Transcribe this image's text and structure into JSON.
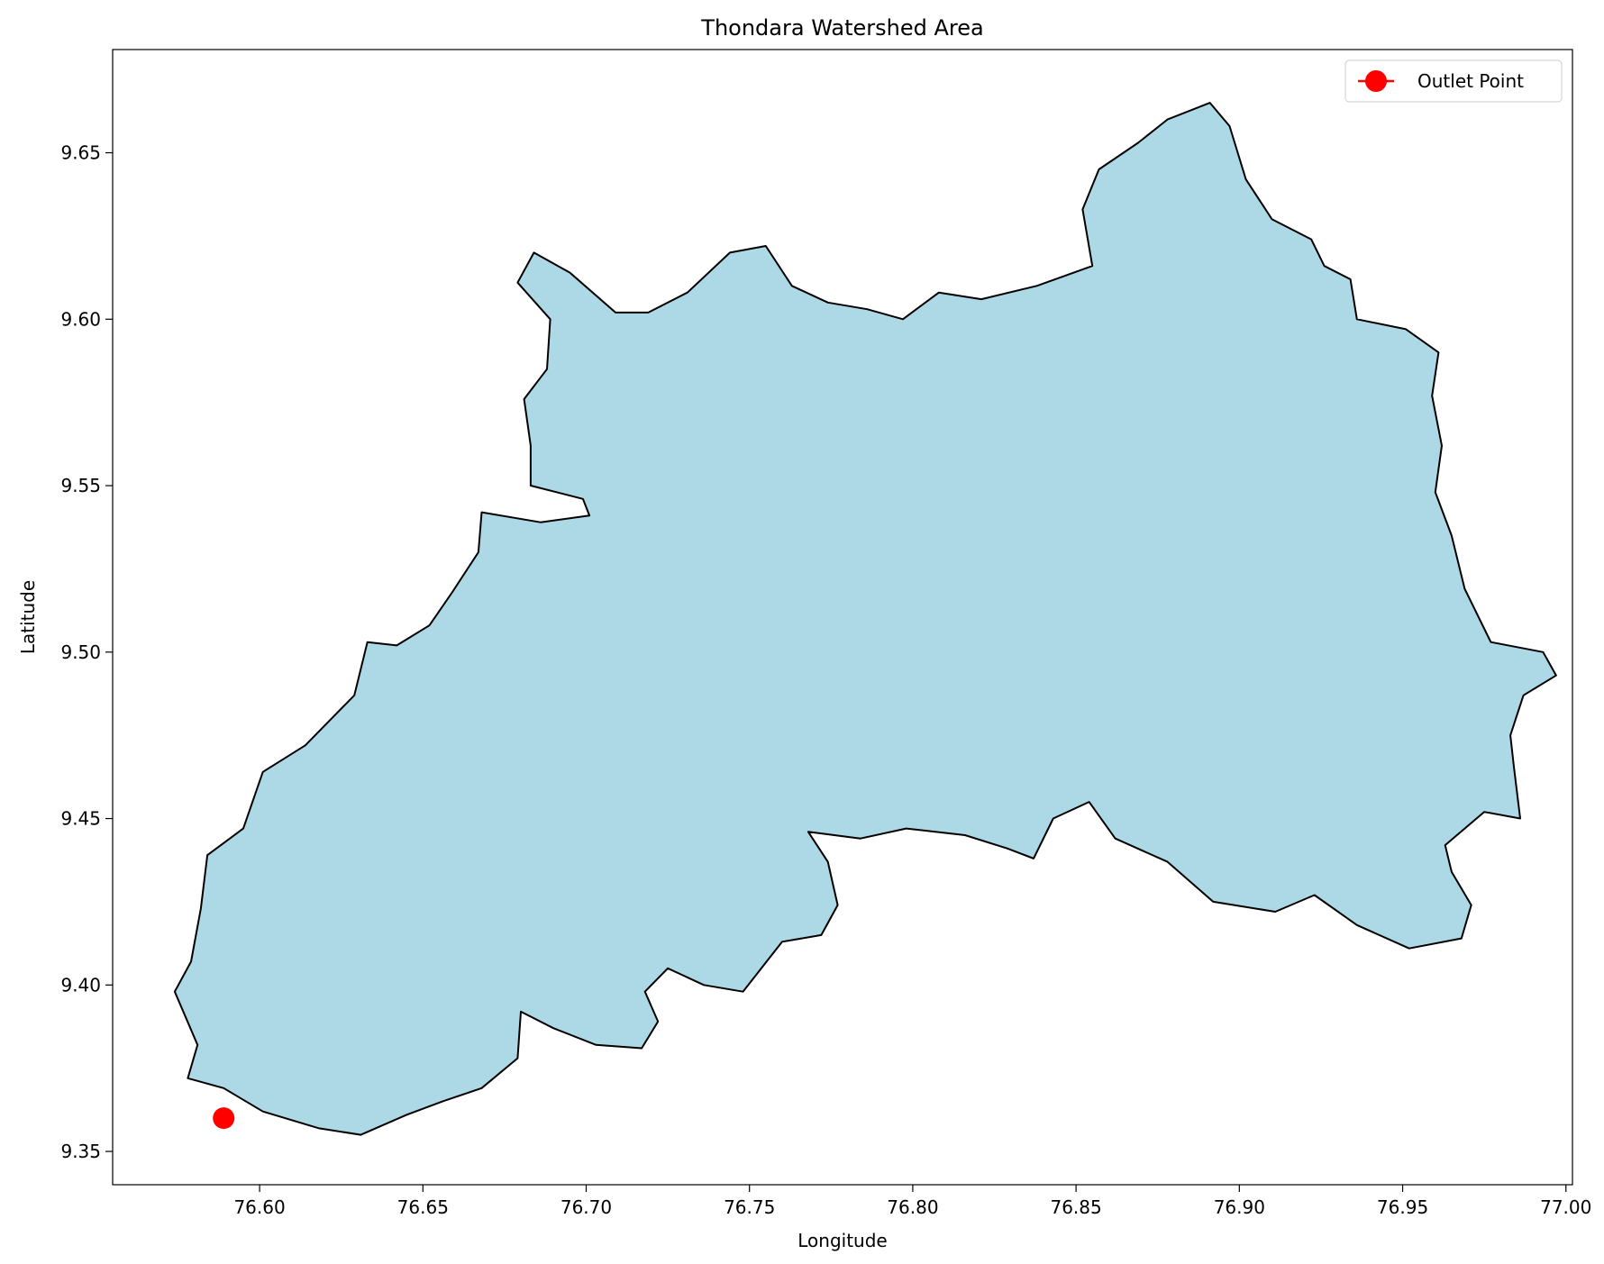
{
  "chart_data": {
    "type": "map",
    "title": "Thondara Watershed Area",
    "xlabel": "Longitude",
    "ylabel": "Latitude",
    "xlim": [
      76.555,
      77.002
    ],
    "ylim": [
      9.34,
      9.681
    ],
    "x_ticks": [
      76.6,
      76.65,
      76.7,
      76.75,
      76.8,
      76.85,
      76.9,
      76.95,
      77.0
    ],
    "x_tick_labels": [
      "76.60",
      "76.65",
      "76.70",
      "76.75",
      "76.80",
      "76.85",
      "76.90",
      "76.95",
      "77.00"
    ],
    "y_ticks": [
      9.35,
      9.4,
      9.45,
      9.5,
      9.55,
      9.6,
      9.65
    ],
    "y_tick_labels": [
      "9.35",
      "9.40",
      "9.45",
      "9.50",
      "9.55",
      "9.60",
      "9.65"
    ],
    "watershed_color": "#add8e6",
    "watershed_edge_color": "#000000",
    "outlet_color": "#ff0000",
    "legend": {
      "position": "top-right",
      "entries": [
        {
          "label": "Outlet Point",
          "color": "#ff0000",
          "marker": "circle"
        }
      ]
    },
    "outlet_point": {
      "lon": 76.589,
      "lat": 9.36
    },
    "watershed_boundary": [
      [
        76.589,
        9.369
      ],
      [
        76.601,
        9.362
      ],
      [
        76.618,
        9.357
      ],
      [
        76.631,
        9.355
      ],
      [
        76.645,
        9.361
      ],
      [
        76.656,
        9.365
      ],
      [
        76.668,
        9.369
      ],
      [
        76.679,
        9.378
      ],
      [
        76.68,
        9.392
      ],
      [
        76.69,
        9.387
      ],
      [
        76.703,
        9.382
      ],
      [
        76.717,
        9.381
      ],
      [
        76.722,
        9.389
      ],
      [
        76.718,
        9.398
      ],
      [
        76.725,
        9.405
      ],
      [
        76.736,
        9.4
      ],
      [
        76.748,
        9.398
      ],
      [
        76.76,
        9.413
      ],
      [
        76.772,
        9.415
      ],
      [
        76.777,
        9.424
      ],
      [
        76.774,
        9.437
      ],
      [
        76.768,
        9.446
      ],
      [
        76.784,
        9.444
      ],
      [
        76.798,
        9.447
      ],
      [
        76.816,
        9.445
      ],
      [
        76.829,
        9.441
      ],
      [
        76.837,
        9.438
      ],
      [
        76.843,
        9.45
      ],
      [
        76.854,
        9.455
      ],
      [
        76.862,
        9.444
      ],
      [
        76.878,
        9.437
      ],
      [
        76.892,
        9.425
      ],
      [
        76.911,
        9.422
      ],
      [
        76.923,
        9.427
      ],
      [
        76.936,
        9.418
      ],
      [
        76.952,
        9.411
      ],
      [
        76.968,
        9.414
      ],
      [
        76.971,
        9.424
      ],
      [
        76.965,
        9.434
      ],
      [
        76.963,
        9.442
      ],
      [
        76.975,
        9.452
      ],
      [
        76.986,
        9.45
      ],
      [
        76.984,
        9.466
      ],
      [
        76.983,
        9.475
      ],
      [
        76.987,
        9.487
      ],
      [
        76.997,
        9.493
      ],
      [
        76.993,
        9.5
      ],
      [
        76.977,
        9.503
      ],
      [
        76.969,
        9.519
      ],
      [
        76.965,
        9.535
      ],
      [
        76.96,
        9.548
      ],
      [
        76.962,
        9.562
      ],
      [
        76.959,
        9.577
      ],
      [
        76.961,
        9.59
      ],
      [
        76.951,
        9.597
      ],
      [
        76.936,
        9.6
      ],
      [
        76.934,
        9.612
      ],
      [
        76.926,
        9.616
      ],
      [
        76.922,
        9.624
      ],
      [
        76.91,
        9.63
      ],
      [
        76.902,
        9.642
      ],
      [
        76.897,
        9.658
      ],
      [
        76.891,
        9.665
      ],
      [
        76.878,
        9.66
      ],
      [
        76.869,
        9.653
      ],
      [
        76.857,
        9.645
      ],
      [
        76.852,
        9.633
      ],
      [
        76.855,
        9.616
      ],
      [
        76.838,
        9.61
      ],
      [
        76.821,
        9.606
      ],
      [
        76.808,
        9.608
      ],
      [
        76.797,
        9.6
      ],
      [
        76.786,
        9.603
      ],
      [
        76.774,
        9.605
      ],
      [
        76.763,
        9.61
      ],
      [
        76.755,
        9.622
      ],
      [
        76.744,
        9.62
      ],
      [
        76.731,
        9.608
      ],
      [
        76.719,
        9.602
      ],
      [
        76.709,
        9.602
      ],
      [
        76.695,
        9.614
      ],
      [
        76.684,
        9.62
      ],
      [
        76.679,
        9.611
      ],
      [
        76.689,
        9.6
      ],
      [
        76.688,
        9.585
      ],
      [
        76.681,
        9.576
      ],
      [
        76.683,
        9.562
      ],
      [
        76.683,
        9.55
      ],
      [
        76.699,
        9.546
      ],
      [
        76.701,
        9.541
      ],
      [
        76.686,
        9.539
      ],
      [
        76.668,
        9.542
      ],
      [
        76.667,
        9.53
      ],
      [
        76.659,
        9.518
      ],
      [
        76.652,
        9.508
      ],
      [
        76.642,
        9.502
      ],
      [
        76.633,
        9.503
      ],
      [
        76.629,
        9.487
      ],
      [
        76.614,
        9.472
      ],
      [
        76.601,
        9.464
      ],
      [
        76.595,
        9.447
      ],
      [
        76.584,
        9.439
      ],
      [
        76.582,
        9.423
      ],
      [
        76.579,
        9.407
      ],
      [
        76.574,
        9.398
      ],
      [
        76.581,
        9.382
      ],
      [
        76.578,
        9.372
      ]
    ]
  }
}
